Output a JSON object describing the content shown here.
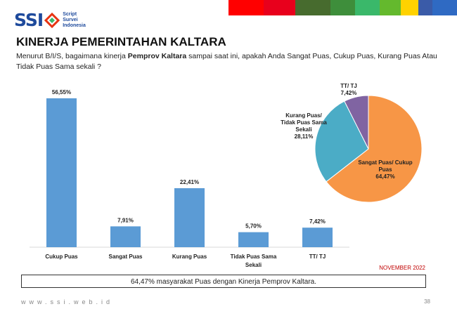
{
  "header": {
    "logo_text": "SSI",
    "logo_sub": [
      "Script",
      "Survei",
      "Indonesia"
    ],
    "title": "KINERJA PEMERINTAHAN KALTARA",
    "question_prefix": "Menurut B/I/S, bagaimana kinerja ",
    "question_bold": "Pemprov Kaltara",
    "question_suffix": " sampai saat ini, apakah Anda Sangat Puas, Cukup Puas, Kurang Puas Atau Tidak Puas Sama sekali ?",
    "color_stripes": [
      "#ff0000",
      "#e8001c",
      "#476b2e",
      "#3e8e3b",
      "#3ab86a",
      "#64b92d",
      "#ffd200",
      "#3a5ba8",
      "#2f6ac3"
    ]
  },
  "chart_data": [
    {
      "type": "bar",
      "categories": [
        "Cukup Puas",
        "Sangat Puas",
        "Kurang Puas",
        "Tidak Puas Sama Sekali",
        "TT/ TJ"
      ],
      "category_lines": [
        [
          "Cukup Puas"
        ],
        [
          "Sangat Puas"
        ],
        [
          "Kurang Puas"
        ],
        [
          "Tidak Puas Sama",
          "Sekali"
        ],
        [
          "TT/ TJ"
        ]
      ],
      "values": [
        56.55,
        7.91,
        22.41,
        5.7,
        7.42
      ],
      "data_labels": [
        "56,55%",
        "7,91%",
        "22,41%",
        "5,70%",
        "7,42%"
      ],
      "ylim": [
        0,
        60
      ],
      "grid": false,
      "color": "#5b9bd5"
    },
    {
      "type": "pie",
      "categories": [
        "Sangat Puas/ Cukup Puas",
        "Kurang Puas/ Tidak Puas Sama Sekali",
        "TT/ TJ"
      ],
      "values": [
        64.47,
        28.11,
        7.42
      ],
      "label_lines": [
        [
          "Sangat Puas/ Cukup",
          "Puas",
          "64,47%"
        ],
        [
          "Kurang Puas/",
          "Tidak Puas Sama",
          "Sekali",
          "28,11%"
        ],
        [
          "TT/ TJ",
          "7,42%"
        ]
      ],
      "colors": [
        "#f79646",
        "#4bacc6",
        "#8064a2"
      ]
    }
  ],
  "footer": {
    "month": "NOVEMBER 2022",
    "summary": "64,47% masyarakat Puas dengan Kinerja Pemprov Kaltara.",
    "url": "www.ssi.web.id",
    "page": "38"
  }
}
